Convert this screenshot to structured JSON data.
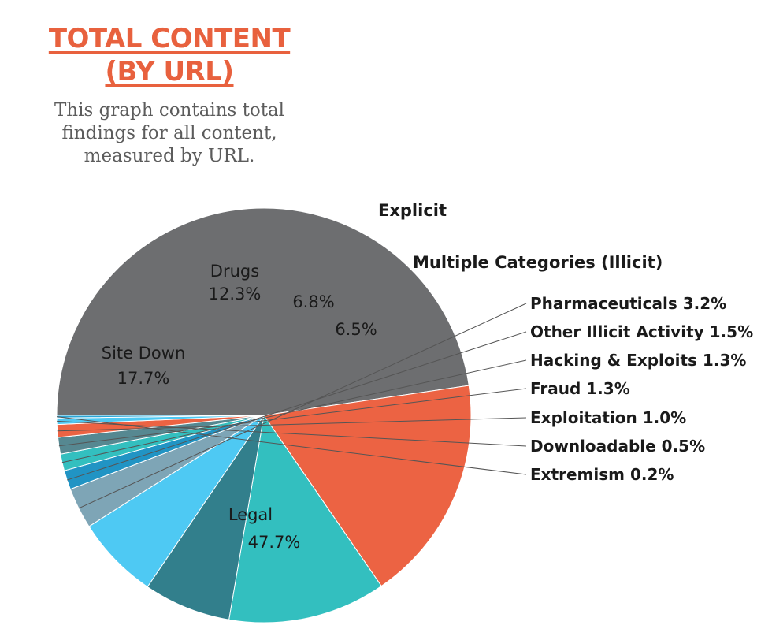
{
  "title_lines": [
    "TOTAL CONTENT",
    "(BY URL)"
  ],
  "subtitle_lines": [
    "This graph contains total",
    "findings for all content,",
    "measured by URL."
  ],
  "colors": {
    "title": "#e8613e",
    "subtitle": "#5c5c5c"
  },
  "chart_data": {
    "type": "pie",
    "unit": "%",
    "slices": [
      {
        "name": "Legal",
        "value": 47.7,
        "color": "#6d6e70",
        "label": "Legal",
        "value_label": "47.7%"
      },
      {
        "name": "Site Down",
        "value": 17.7,
        "color": "#ec6343",
        "label": "Site Down",
        "value_label": "17.7%"
      },
      {
        "name": "Drugs",
        "value": 12.3,
        "color": "#33bfbf",
        "label": "Drugs",
        "value_label": "12.3%"
      },
      {
        "name": "Explicit",
        "value": 6.8,
        "color": "#327f8c",
        "label": "Explicit",
        "value_label": "6.8%"
      },
      {
        "name": "Multiple Categories (Illicit)",
        "value": 6.5,
        "color": "#4ec9f3",
        "label": "Multiple Categories (Illicit)",
        "value_label": "6.5%"
      },
      {
        "name": "Pharmaceuticals",
        "value": 3.2,
        "color": "#7ea5b6",
        "label": "Pharmaceuticals 3.2%"
      },
      {
        "name": "Other Illicit Activity",
        "value": 1.5,
        "color": "#2194c4",
        "label": "Other Illicit Activity 1.5%"
      },
      {
        "name": "Hacking & Exploits",
        "value": 1.3,
        "color": "#33bfbf",
        "label": "Hacking & Exploits 1.3%"
      },
      {
        "name": "Fraud",
        "value": 1.3,
        "color": "#568891",
        "label": "Fraud 1.3%"
      },
      {
        "name": "Exploitation",
        "value": 1.0,
        "color": "#ec6343",
        "label": "Exploitation 1.0%"
      },
      {
        "name": "Downloadable",
        "value": 0.5,
        "color": "#4ec9f3",
        "label": "Downloadable 0.5%"
      },
      {
        "name": "Extremism",
        "value": 0.2,
        "color": "#2aa6d6",
        "label": "Extremism 0.2%"
      }
    ]
  }
}
